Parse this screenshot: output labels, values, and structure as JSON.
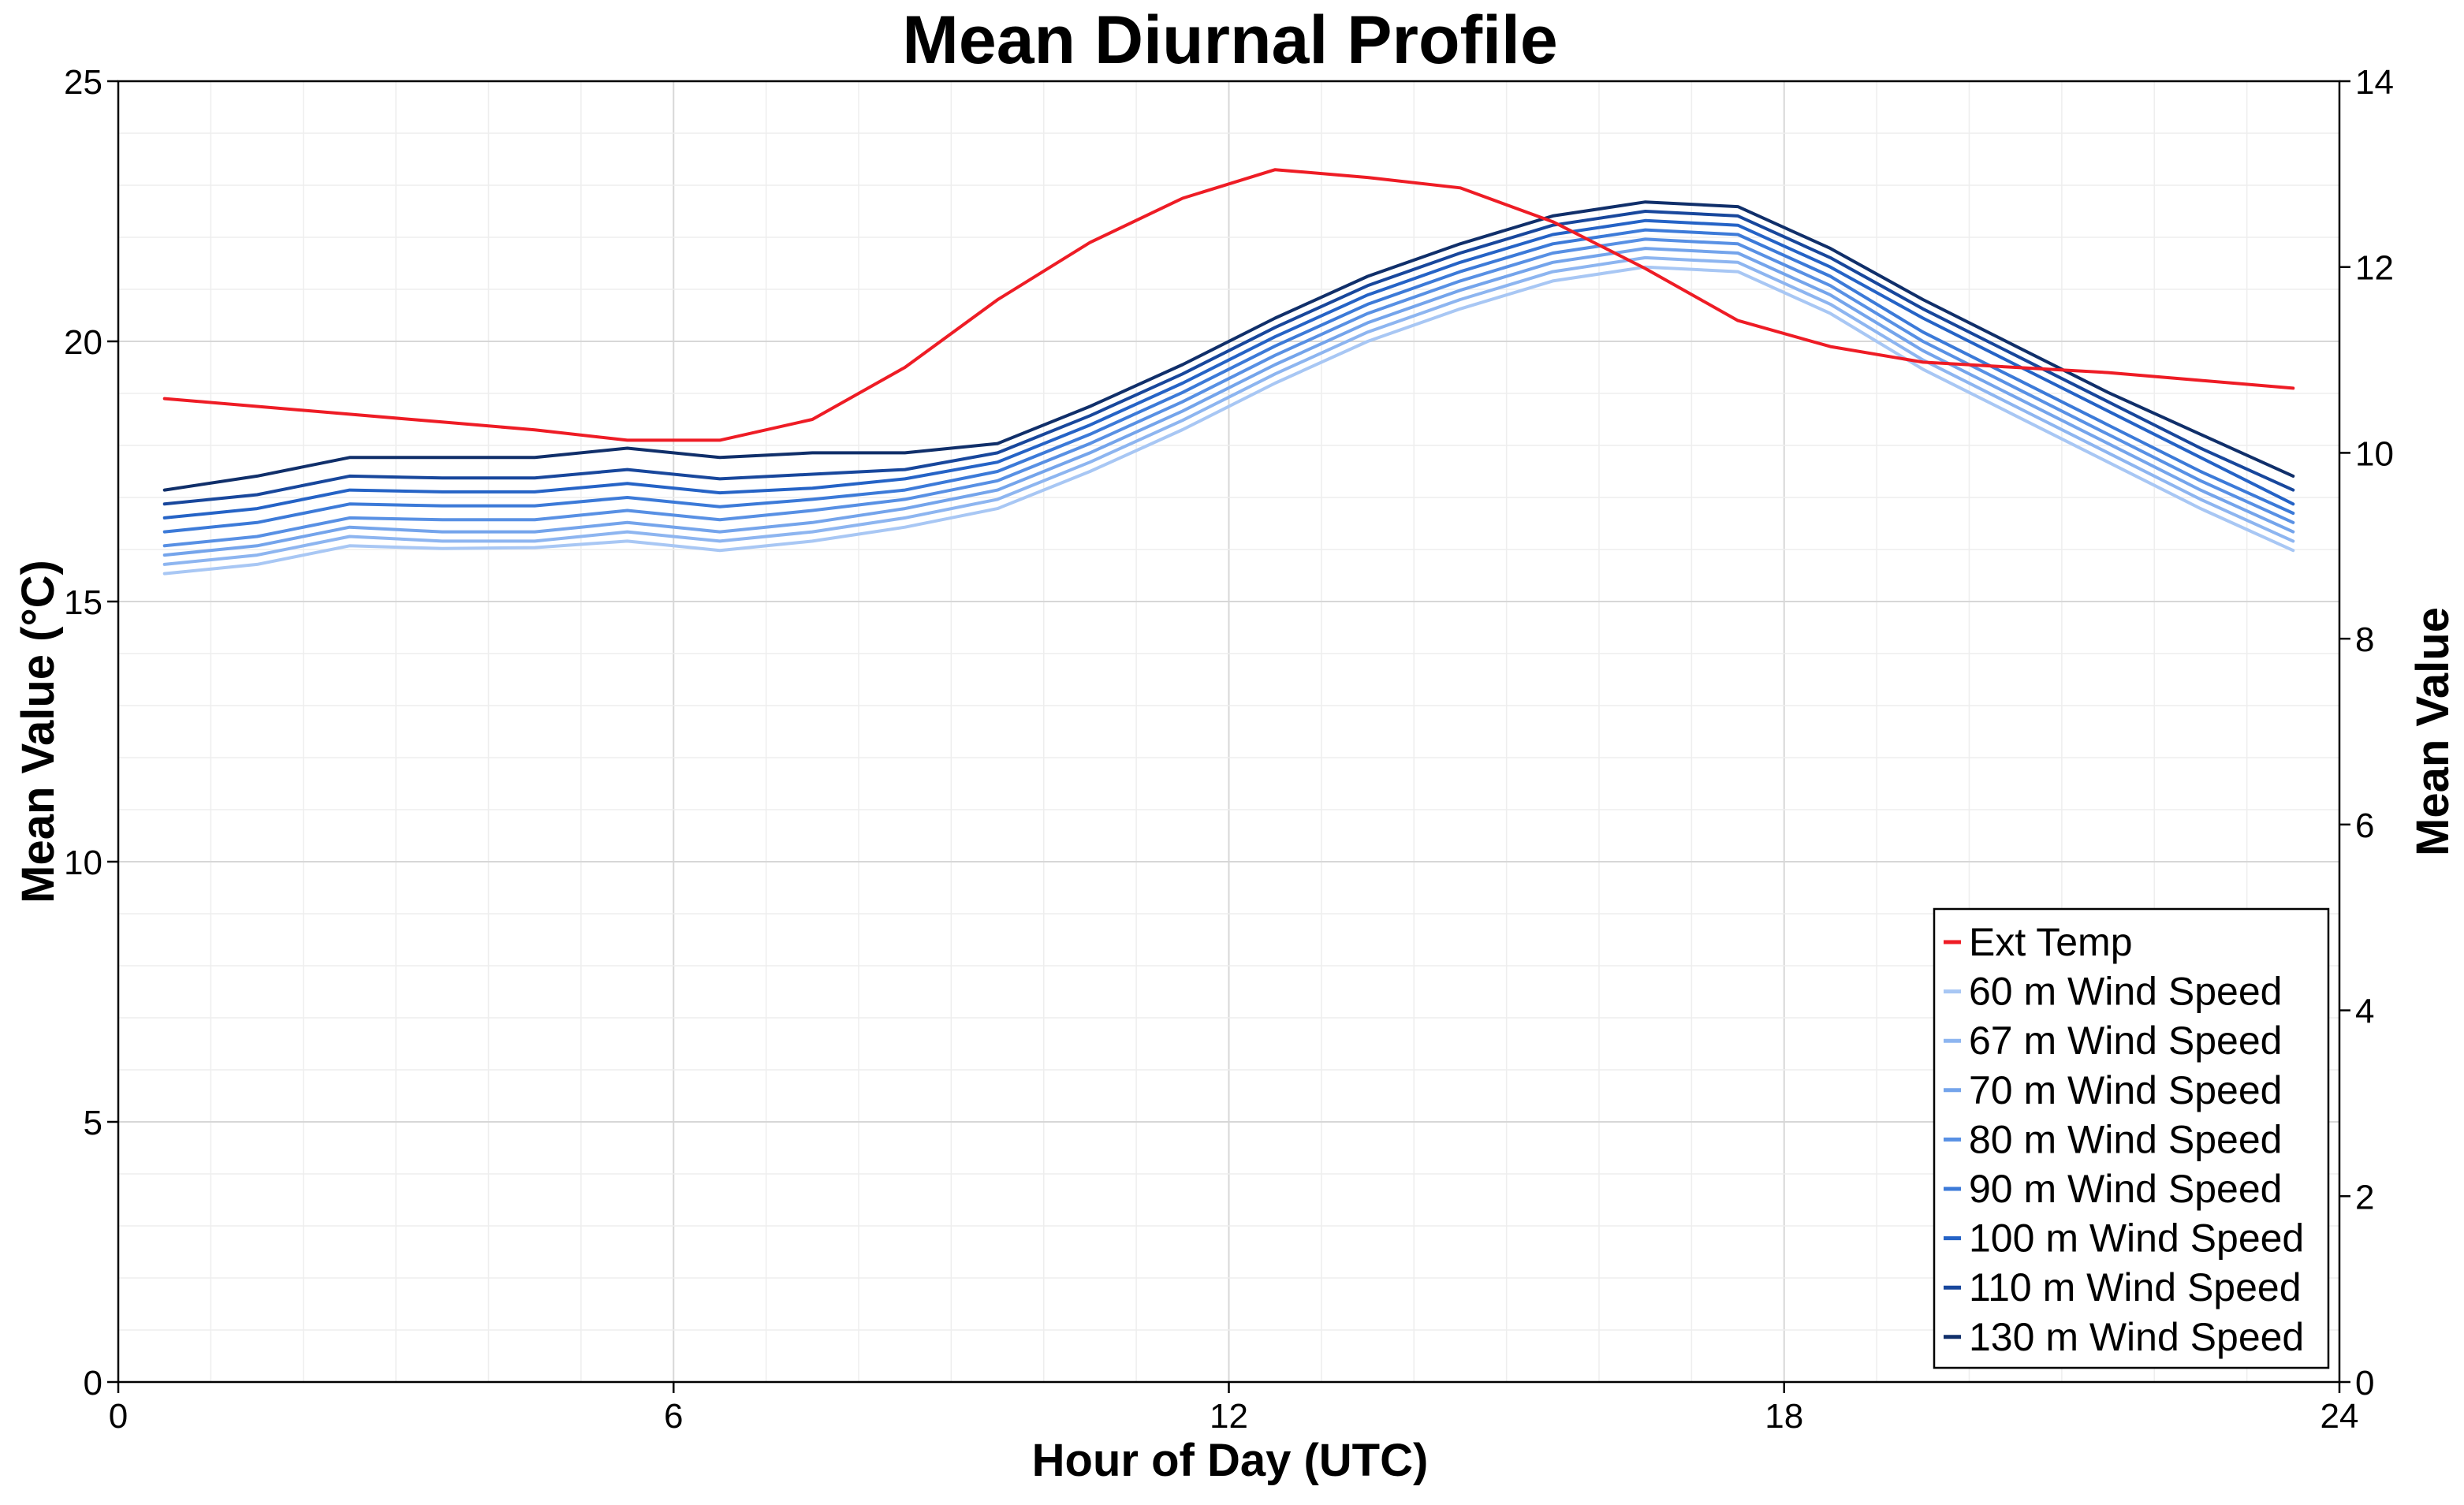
{
  "chart_data": {
    "type": "line",
    "title": "Mean Diurnal Profile",
    "xlabel": "Hour of Day (UTC)",
    "ylabel_left": "Mean Value (°C)",
    "ylabel_right": "Mean Value",
    "xlim": [
      0,
      24
    ],
    "ylim_left": [
      0,
      25
    ],
    "ylim_right": [
      0,
      14
    ],
    "x_ticks": [
      0,
      6,
      12,
      18,
      24
    ],
    "y_ticks_left": [
      0,
      5,
      10,
      15,
      20,
      25
    ],
    "y_ticks_right": [
      0,
      2,
      4,
      6,
      8,
      10,
      12,
      14
    ],
    "grid": true,
    "legend_position": "bottom-right",
    "x": [
      0.5,
      1.5,
      2.5,
      3.5,
      4.5,
      5.5,
      6.5,
      7.5,
      8.5,
      9.5,
      10.5,
      11.5,
      12.5,
      13.5,
      14.5,
      15.5,
      16.5,
      17.5,
      18.5,
      19.5,
      20.5,
      21.5,
      22.5,
      23.5
    ],
    "series": [
      {
        "name": "Ext Temp",
        "axis": "left",
        "color": "#ee1c25",
        "values": [
          18.9,
          18.75,
          18.6,
          18.45,
          18.3,
          18.1,
          18.1,
          18.5,
          19.5,
          20.8,
          21.9,
          22.75,
          23.3,
          23.15,
          22.95,
          22.3,
          21.4,
          20.4,
          19.9,
          19.6,
          19.5,
          19.4,
          19.25,
          19.1
        ]
      },
      {
        "name": "60 m Wind Speed",
        "axis": "right",
        "color": "#a8c7f4",
        "values": [
          8.7,
          8.8,
          9.0,
          8.97,
          8.98,
          9.05,
          8.95,
          9.05,
          9.2,
          9.4,
          9.8,
          10.25,
          10.75,
          11.2,
          11.55,
          11.85,
          12.0,
          11.95,
          11.5,
          10.9,
          10.4,
          9.9,
          9.4,
          8.95
        ]
      },
      {
        "name": "67 m Wind Speed",
        "axis": "right",
        "color": "#8db5f0",
        "values": [
          8.8,
          8.9,
          9.1,
          9.05,
          9.05,
          9.15,
          9.05,
          9.15,
          9.3,
          9.5,
          9.9,
          10.35,
          10.85,
          11.3,
          11.65,
          11.95,
          12.1,
          12.05,
          11.6,
          11.0,
          10.5,
          10.0,
          9.5,
          9.05
        ]
      },
      {
        "name": "70 m Wind Speed",
        "axis": "right",
        "color": "#74a4eb",
        "values": [
          8.9,
          9.0,
          9.2,
          9.15,
          9.15,
          9.25,
          9.15,
          9.25,
          9.4,
          9.6,
          10.0,
          10.45,
          10.95,
          11.4,
          11.75,
          12.05,
          12.2,
          12.15,
          11.7,
          11.1,
          10.6,
          10.1,
          9.6,
          9.15
        ]
      },
      {
        "name": "80 m Wind Speed",
        "axis": "right",
        "color": "#5890e4",
        "values": [
          9.0,
          9.1,
          9.3,
          9.28,
          9.28,
          9.38,
          9.28,
          9.38,
          9.5,
          9.7,
          10.1,
          10.55,
          11.05,
          11.5,
          11.85,
          12.15,
          12.3,
          12.25,
          11.8,
          11.2,
          10.7,
          10.2,
          9.7,
          9.25
        ]
      },
      {
        "name": "90 m Wind Speed",
        "axis": "right",
        "color": "#3c7ad8",
        "values": [
          9.15,
          9.25,
          9.45,
          9.43,
          9.43,
          9.52,
          9.42,
          9.5,
          9.6,
          9.8,
          10.2,
          10.65,
          11.15,
          11.6,
          11.95,
          12.25,
          12.4,
          12.35,
          11.9,
          11.3,
          10.8,
          10.3,
          9.8,
          9.35
        ]
      },
      {
        "name": "100 m Wind Speed",
        "axis": "right",
        "color": "#2563c6",
        "values": [
          9.3,
          9.4,
          9.6,
          9.58,
          9.58,
          9.67,
          9.57,
          9.62,
          9.72,
          9.9,
          10.3,
          10.75,
          11.25,
          11.7,
          12.05,
          12.35,
          12.5,
          12.45,
          12.0,
          11.45,
          10.95,
          10.45,
          9.95,
          9.45
        ]
      },
      {
        "name": "110 m Wind Speed",
        "axis": "right",
        "color": "#18479c",
        "values": [
          9.45,
          9.55,
          9.75,
          9.73,
          9.73,
          9.82,
          9.72,
          9.77,
          9.82,
          10.0,
          10.4,
          10.85,
          11.35,
          11.8,
          12.15,
          12.45,
          12.6,
          12.55,
          12.1,
          11.55,
          11.05,
          10.55,
          10.05,
          9.6
        ]
      },
      {
        "name": "130 m Wind Speed",
        "axis": "right",
        "color": "#102f6a",
        "values": [
          9.6,
          9.75,
          9.95,
          9.95,
          9.95,
          10.05,
          9.95,
          10.0,
          10.0,
          10.1,
          10.5,
          10.95,
          11.45,
          11.9,
          12.25,
          12.55,
          12.7,
          12.65,
          12.2,
          11.65,
          11.15,
          10.65,
          10.2,
          9.75
        ]
      }
    ]
  }
}
